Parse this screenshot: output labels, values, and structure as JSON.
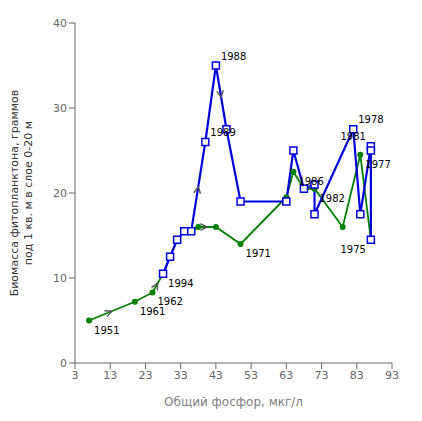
{
  "chart_data": {
    "type": "line",
    "xlabel": "Общий фосфор, мкг/л",
    "ylabel": "Биомасса фитопланктона, граммов\nпод 1 кв. м в слое 0-20 м",
    "xlim": [
      3,
      93
    ],
    "ylim": [
      0,
      40
    ],
    "xticks": [
      3,
      13,
      23,
      33,
      43,
      53,
      63,
      73,
      83,
      93
    ],
    "yticks": [
      0,
      10,
      20,
      30,
      40
    ],
    "grid": false,
    "series": [
      {
        "color": "#008000",
        "marker": "circle",
        "x": [
          7,
          20,
          25,
          28,
          30,
          32,
          34,
          36,
          38,
          43,
          50,
          63,
          65,
          68,
          71,
          79,
          84,
          87
        ],
        "values": [
          5.0,
          7.2,
          8.3,
          10.5,
          12.5,
          14.5,
          15.5,
          15.5,
          16.0,
          16.0,
          14.0,
          19.5,
          22.5,
          20.5,
          20.5,
          16.0,
          24.5,
          14.5
        ],
        "labels": [
          "1951",
          "1961",
          "1962",
          "1994",
          null,
          null,
          null,
          null,
          null,
          null,
          "1971",
          null,
          "1986",
          null,
          "1982",
          null,
          "1977",
          "1975"
        ],
        "arrows": {
          "color": "#555555",
          "segments": [
            [
              0,
              1
            ],
            [
              2,
              3
            ],
            [
              8,
              9
            ]
          ]
        }
      },
      {
        "color": "#0000dd",
        "marker": "square",
        "x": [
          28,
          30,
          32,
          34,
          36,
          40,
          43,
          46,
          50,
          63,
          65,
          68,
          71,
          71,
          82,
          84,
          87,
          87,
          87
        ],
        "values": [
          10.5,
          12.5,
          14.5,
          15.5,
          15.5,
          26.0,
          35.0,
          27.5,
          19.0,
          19.0,
          25.0,
          20.5,
          21.0,
          17.5,
          27.5,
          17.5,
          25.5,
          25.0,
          14.5
        ],
        "labels": [
          null,
          null,
          null,
          null,
          null,
          "1989",
          "1988",
          null,
          null,
          null,
          null,
          null,
          null,
          null,
          "1978",
          null,
          "1981",
          null,
          null
        ],
        "arrows": {
          "color": "#555555",
          "segments": [
            [
              4,
              5
            ],
            [
              6,
              7
            ],
            [
              11,
              12
            ]
          ]
        }
      }
    ]
  }
}
